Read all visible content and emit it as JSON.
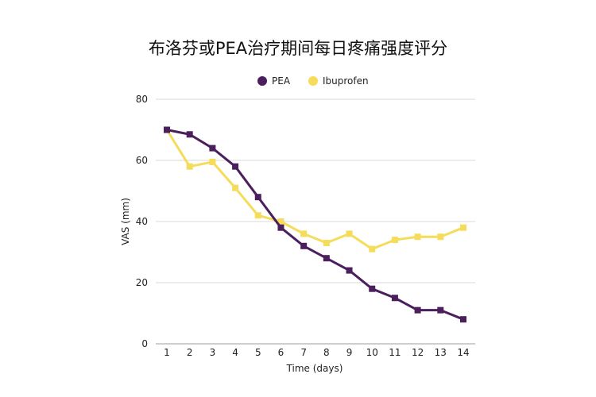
{
  "chart_data": {
    "type": "line",
    "title": "布洛芬或PEA治疗期间每日疼痛强度评分",
    "xlabel": "Time (days)",
    "ylabel": "VAS (mm)",
    "x": [
      "1",
      "2",
      "3",
      "4",
      "5",
      "6",
      "7",
      "8",
      "9",
      "10",
      "11",
      "12",
      "13",
      "14"
    ],
    "ylim": [
      0,
      80
    ],
    "yticks": [
      "0",
      "20",
      "40",
      "60",
      "80"
    ],
    "yticks_values": [
      0,
      20,
      40,
      60,
      80
    ],
    "grid": true,
    "legend_position": "top-center",
    "series": [
      {
        "name": "PEA",
        "color": "#4a1f5c",
        "marker": "square",
        "values": [
          70,
          68.5,
          64,
          58,
          48,
          38,
          32,
          28,
          24,
          18,
          15,
          11,
          11,
          8
        ]
      },
      {
        "name": "Ibuprofen",
        "color": "#f5dc5a",
        "marker": "square",
        "values": [
          70,
          58,
          59.5,
          51,
          42,
          40,
          36,
          33,
          36,
          31,
          34,
          35,
          35,
          38
        ]
      }
    ]
  }
}
